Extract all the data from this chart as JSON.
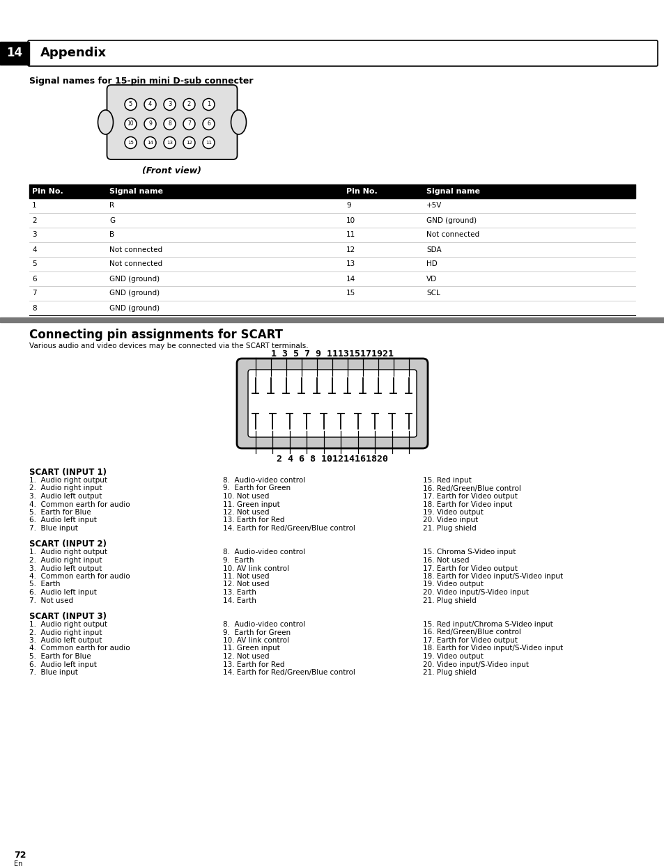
{
  "bg_color": "#ffffff",
  "page_num": "72",
  "chapter_num": "14",
  "chapter_title": "Appendix",
  "section1_title": "Signal names for 15-pin mini D-sub connecter",
  "front_view_label": "(Front view)",
  "table_headers": [
    "Pin No.",
    "Signal name",
    "Pin No.",
    "Signal name"
  ],
  "table_rows": [
    [
      "1",
      "R",
      "9",
      "+5V"
    ],
    [
      "2",
      "G",
      "10",
      "GND (ground)"
    ],
    [
      "3",
      "B",
      "11",
      "Not connected"
    ],
    [
      "4",
      "Not connected",
      "12",
      "SDA"
    ],
    [
      "5",
      "Not connected",
      "13",
      "HD"
    ],
    [
      "6",
      "GND (ground)",
      "14",
      "VD"
    ],
    [
      "7",
      "GND (ground)",
      "15",
      "SCL"
    ],
    [
      "8",
      "GND (ground)",
      "",
      ""
    ]
  ],
  "section2_title": "Connecting pin assignments for SCART",
  "section2_subtitle": "Various audio and video devices may be connected via the SCART terminals.",
  "scart_top_pins": "1 3 5 7 9 111315171921",
  "scart_bottom_pins": "2 4 6 8 101214161820",
  "scart_input1_title": "SCART (INPUT 1)",
  "scart_input1_col1": [
    "1.  Audio right output",
    "2.  Audio right input",
    "3.  Audio left output",
    "4.  Common earth for audio",
    "5.  Earth for Blue",
    "6.  Audio left input",
    "7.  Blue input"
  ],
  "scart_input1_col2": [
    "8.  Audio-video control",
    "9.  Earth for Green",
    "10. Not used",
    "11. Green input",
    "12. Not used",
    "13. Earth for Red",
    "14. Earth for Red/Green/Blue control"
  ],
  "scart_input1_col3": [
    "15. Red input",
    "16. Red/Green/Blue control",
    "17. Earth for Video output",
    "18. Earth for Video input",
    "19. Video output",
    "20. Video input",
    "21. Plug shield"
  ],
  "scart_input2_title": "SCART (INPUT 2)",
  "scart_input2_col1": [
    "1.  Audio right output",
    "2.  Audio right input",
    "3.  Audio left output",
    "4.  Common earth for audio",
    "5.  Earth",
    "6.  Audio left input",
    "7.  Not used"
  ],
  "scart_input2_col2": [
    "8.  Audio-video control",
    "9.  Earth",
    "10. AV link control",
    "11. Not used",
    "12. Not used",
    "13. Earth",
    "14. Earth"
  ],
  "scart_input2_col3": [
    "15. Chroma S-Video input",
    "16. Not used",
    "17. Earth for Video output",
    "18. Earth for Video input/S-Video input",
    "19. Video output",
    "20. Video input/S-Video input",
    "21. Plug shield"
  ],
  "scart_input3_title": "SCART (INPUT 3)",
  "scart_input3_col1": [
    "1.  Audio right output",
    "2.  Audio right input",
    "3.  Audio left output",
    "4.  Common earth for audio",
    "5.  Earth for Blue",
    "6.  Audio left input",
    "7.  Blue input"
  ],
  "scart_input3_col2": [
    "8.  Audio-video control",
    "9.  Earth for Green",
    "10. AV link control",
    "11. Green input",
    "12. Not used",
    "13. Earth for Red",
    "14. Earth for Red/Green/Blue control"
  ],
  "scart_input3_col3": [
    "15. Red input/Chroma S-Video input",
    "16. Red/Green/Blue control",
    "17. Earth for Video output",
    "18. Earth for Video input/S-Video input",
    "19. Video output",
    "20. Video input/S-Video input",
    "21. Plug shield"
  ]
}
